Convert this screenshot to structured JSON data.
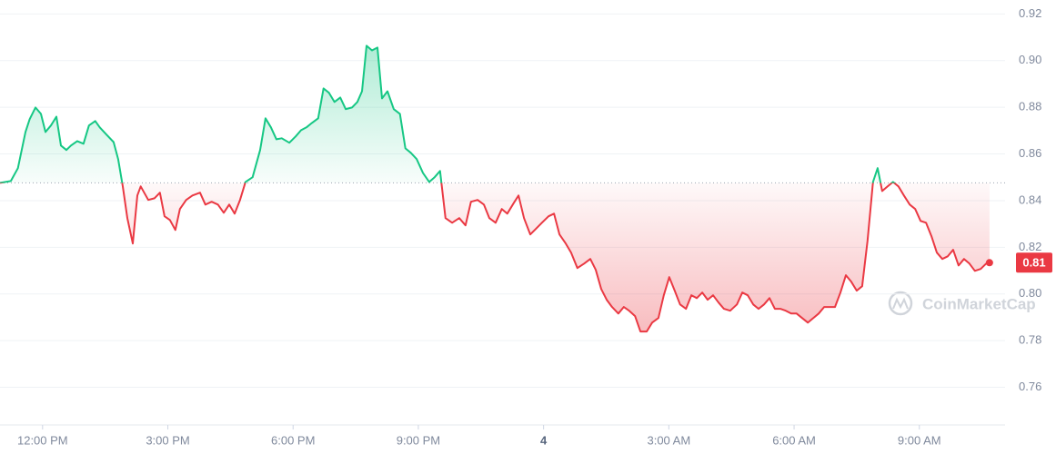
{
  "chart_data": {
    "type": "line",
    "x": [
      10.98,
      11.24,
      11.41,
      11.59,
      11.69,
      11.83,
      11.96,
      12.07,
      12.2,
      12.33,
      12.44,
      12.57,
      12.68,
      12.83,
      12.98,
      13.11,
      13.26,
      13.37,
      13.53,
      13.7,
      13.81,
      13.92,
      14.03,
      14.16,
      14.27,
      14.35,
      14.53,
      14.68,
      14.81,
      14.92,
      15.05,
      15.18,
      15.29,
      15.44,
      15.59,
      15.77,
      15.9,
      16.05,
      16.2,
      16.34,
      16.47,
      16.6,
      16.73,
      16.86,
      17.03,
      17.21,
      17.34,
      17.47,
      17.6,
      17.73,
      17.91,
      18.06,
      18.19,
      18.32,
      18.45,
      18.6,
      18.73,
      18.86,
      18.99,
      19.13,
      19.26,
      19.41,
      19.54,
      19.65,
      19.76,
      19.89,
      20.02,
      20.13,
      20.26,
      20.41,
      20.56,
      20.69,
      20.82,
      20.96,
      21.11,
      21.26,
      21.39,
      21.52,
      21.65,
      21.81,
      21.98,
      22.13,
      22.26,
      22.42,
      22.57,
      22.7,
      22.85,
      23.0,
      23.13,
      23.29,
      23.4,
      23.53,
      23.68,
      23.81,
      23.96,
      24.12,
      24.25,
      24.38,
      24.53,
      24.66,
      24.81,
      24.97,
      25.12,
      25.25,
      25.38,
      25.51,
      25.64,
      25.79,
      25.92,
      26.05,
      26.19,
      26.32,
      26.47,
      26.6,
      26.75,
      26.88,
      27.01,
      27.14,
      27.27,
      27.41,
      27.54,
      27.67,
      27.8,
      27.93,
      28.06,
      28.19,
      28.32,
      28.47,
      28.63,
      28.76,
      28.89,
      29.02,
      29.15,
      29.28,
      29.41,
      29.54,
      29.67,
      29.8,
      29.93,
      30.06,
      30.19,
      30.33,
      30.46,
      30.59,
      30.72,
      30.85,
      30.98,
      31.11,
      31.24,
      31.37,
      31.5,
      31.63,
      31.76,
      31.89,
      32.0,
      32.11,
      32.24,
      32.37,
      32.5,
      32.63,
      32.77,
      32.9,
      33.03,
      33.16,
      33.29,
      33.42,
      33.55,
      33.68,
      33.81,
      33.94,
      34.07,
      34.2,
      34.33,
      34.47,
      34.6,
      34.68
    ],
    "values": [
      0.8476,
      0.8484,
      0.8539,
      0.8694,
      0.8749,
      0.8799,
      0.8772,
      0.8694,
      0.8722,
      0.876,
      0.8636,
      0.8617,
      0.8636,
      0.8655,
      0.8644,
      0.8722,
      0.8741,
      0.8714,
      0.8683,
      0.8651,
      0.8578,
      0.8461,
      0.8325,
      0.8216,
      0.8422,
      0.8461,
      0.8403,
      0.841,
      0.8434,
      0.8333,
      0.8317,
      0.8274,
      0.8364,
      0.8403,
      0.8422,
      0.8434,
      0.8383,
      0.8395,
      0.8383,
      0.8348,
      0.8383,
      0.8344,
      0.8403,
      0.848,
      0.85,
      0.8617,
      0.8753,
      0.8714,
      0.8663,
      0.8667,
      0.8648,
      0.8675,
      0.8702,
      0.8714,
      0.8733,
      0.8753,
      0.8881,
      0.8862,
      0.8823,
      0.8842,
      0.8792,
      0.8799,
      0.8823,
      0.8869,
      0.9064,
      0.9044,
      0.9056,
      0.8838,
      0.8869,
      0.8792,
      0.8772,
      0.8624,
      0.8605,
      0.8578,
      0.8519,
      0.848,
      0.85,
      0.8527,
      0.8325,
      0.8305,
      0.8325,
      0.8294,
      0.8395,
      0.8403,
      0.8383,
      0.8325,
      0.8305,
      0.8364,
      0.8344,
      0.8391,
      0.8422,
      0.8325,
      0.8255,
      0.8278,
      0.8305,
      0.8333,
      0.8344,
      0.8255,
      0.8216,
      0.8177,
      0.8111,
      0.813,
      0.815,
      0.8103,
      0.8021,
      0.7975,
      0.7944,
      0.7916,
      0.7944,
      0.7928,
      0.7905,
      0.7839,
      0.7839,
      0.7877,
      0.7897,
      0.7994,
      0.8072,
      0.8014,
      0.7955,
      0.7936,
      0.7994,
      0.7982,
      0.8006,
      0.7975,
      0.7994,
      0.7963,
      0.7936,
      0.7928,
      0.7955,
      0.8006,
      0.7994,
      0.7955,
      0.7936,
      0.7955,
      0.7982,
      0.7936,
      0.7936,
      0.7928,
      0.7916,
      0.7916,
      0.7897,
      0.7877,
      0.7897,
      0.7916,
      0.7944,
      0.7944,
      0.7944,
      0.8006,
      0.808,
      0.8052,
      0.8014,
      0.8033,
      0.8228,
      0.848,
      0.8539,
      0.8441,
      0.8461,
      0.848,
      0.8461,
      0.8422,
      0.8383,
      0.8364,
      0.8313,
      0.8305,
      0.8247,
      0.8177,
      0.815,
      0.8161,
      0.8189,
      0.8122,
      0.815,
      0.813,
      0.8099,
      0.8107,
      0.813,
      0.8134
    ],
    "xlim": [
      10.98,
      34.77
    ],
    "ylim": [
      0.745,
      0.926
    ],
    "xticks": [
      {
        "value": 12,
        "label": "12:00 PM"
      },
      {
        "value": 15,
        "label": "3:00 PM"
      },
      {
        "value": 18,
        "label": "6:00 PM"
      },
      {
        "value": 21,
        "label": "9:00 PM"
      },
      {
        "value": 24,
        "label": "4"
      },
      {
        "value": 27,
        "label": "3:00 AM"
      },
      {
        "value": 30,
        "label": "6:00 AM"
      },
      {
        "value": 33,
        "label": "9:00 AM"
      }
    ],
    "yticks": [
      0.76,
      0.78,
      {
        "value": 0.8,
        "label": "0.80"
      },
      0.82,
      0.84,
      0.86,
      0.88,
      {
        "value": 0.9,
        "label": "0.90"
      },
      0.92
    ],
    "baseline": 0.8476,
    "color_up": "#16c784",
    "color_down": "#ea3943",
    "grid": true,
    "current_label": "0.81",
    "watermark": "CoinMarketCap"
  }
}
